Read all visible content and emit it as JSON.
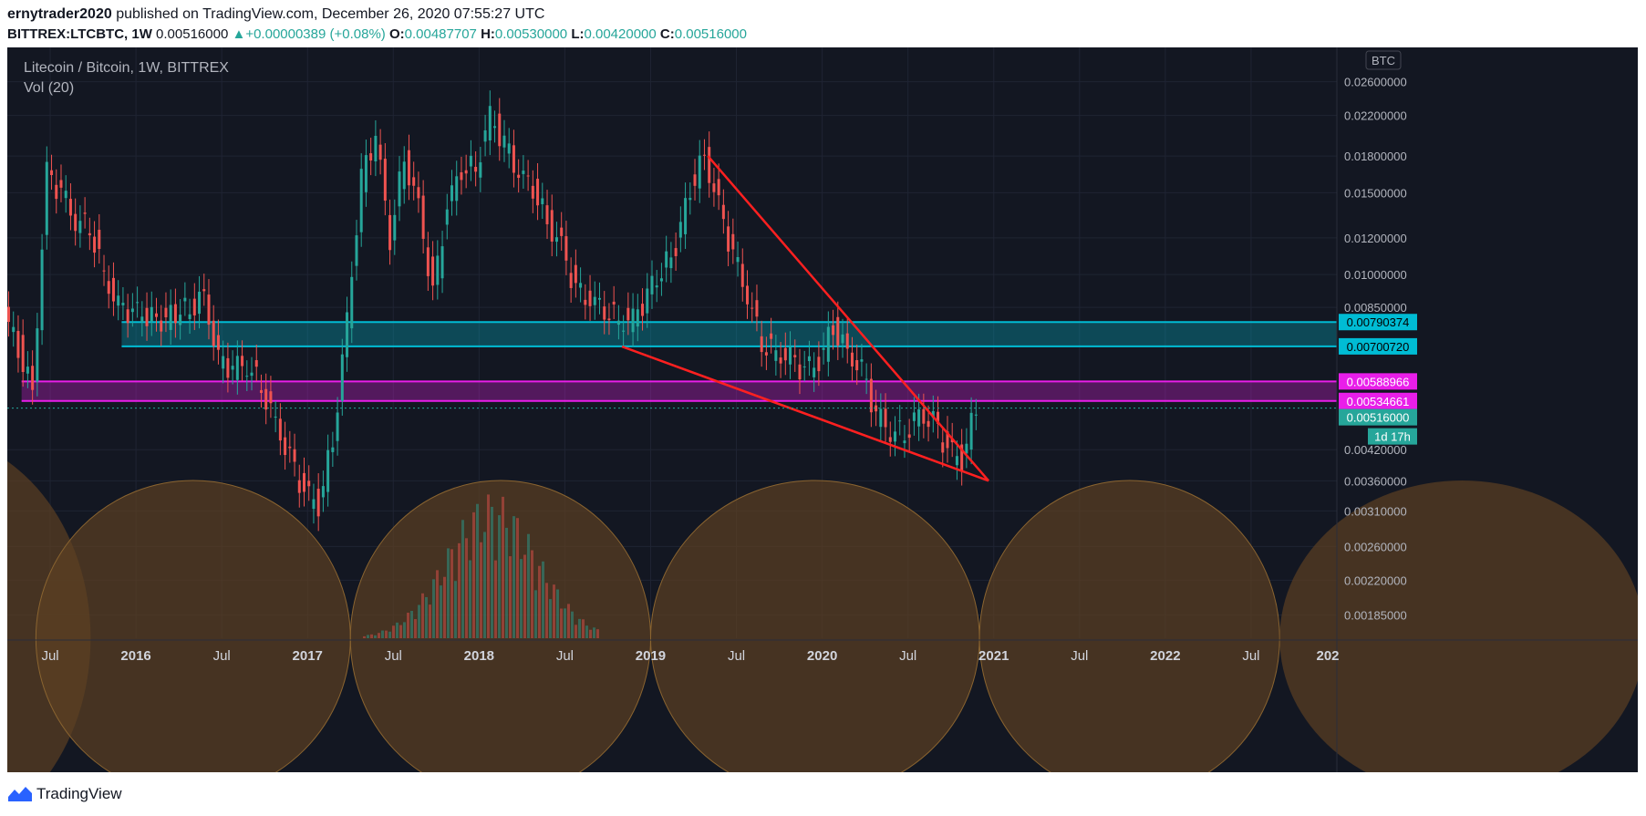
{
  "header": {
    "author": "ernytrader2020",
    "published_text": "published on TradingView.com, December 26, 2020 07:55:27 UTC",
    "symbol": "BITTREX:LTCBTC, 1W",
    "last": "0.00516000",
    "change": "+0.00000389 (+0.08%)",
    "open_label": "O:",
    "open": "0.00487707",
    "high_label": "H:",
    "high": "0.00530000",
    "low_label": "L:",
    "low": "0.00420000",
    "close_label": "C:",
    "close": "0.00516000"
  },
  "legend": {
    "title": "Litecoin / Bitcoin, 1W, BITTREX",
    "volume": "Vol (20)",
    "currency": "BTC"
  },
  "chart_data": {
    "type": "candlestick",
    "y_scale": "log",
    "ylim": [
      0.00165,
      0.03
    ],
    "y_ticks": [
      "0.02600000",
      "0.02200000",
      "0.01800000",
      "0.01500000",
      "0.01200000",
      "0.01000000",
      "0.00850000",
      "0.00420000",
      "0.00360000",
      "0.00310000",
      "0.00260000",
      "0.00220000",
      "0.00185000"
    ],
    "x_ticks": [
      "Jul",
      "2016",
      "Jul",
      "2017",
      "Jul",
      "2018",
      "Jul",
      "2019",
      "Jul",
      "2020",
      "Jul",
      "2021",
      "Jul",
      "2022",
      "Jul",
      "202"
    ],
    "series": [
      {
        "x": "2015-04",
        "y": 0.0082
      },
      {
        "x": "2015-05",
        "y": 0.007
      },
      {
        "x": "2015-06",
        "y": 0.0056
      },
      {
        "x": "2015-07",
        "y": 0.0165
      },
      {
        "x": "2015-08",
        "y": 0.015
      },
      {
        "x": "2015-09",
        "y": 0.013
      },
      {
        "x": "2015-10",
        "y": 0.0128
      },
      {
        "x": "2015-11",
        "y": 0.01
      },
      {
        "x": "2015-12",
        "y": 0.0085
      },
      {
        "x": "2016-01",
        "y": 0.0083
      },
      {
        "x": "2016-03",
        "y": 0.008
      },
      {
        "x": "2016-05",
        "y": 0.0085
      },
      {
        "x": "2016-06",
        "y": 0.009
      },
      {
        "x": "2016-07",
        "y": 0.0065
      },
      {
        "x": "2016-08",
        "y": 0.0063
      },
      {
        "x": "2016-09",
        "y": 0.0064
      },
      {
        "x": "2016-10",
        "y": 0.0058
      },
      {
        "x": "2016-11",
        "y": 0.0048
      },
      {
        "x": "2016-12",
        "y": 0.004
      },
      {
        "x": "2017-01",
        "y": 0.0034
      },
      {
        "x": "2017-02",
        "y": 0.0032
      },
      {
        "x": "2017-03",
        "y": 0.0044
      },
      {
        "x": "2017-04",
        "y": 0.008
      },
      {
        "x": "2017-05",
        "y": 0.016
      },
      {
        "x": "2017-06",
        "y": 0.02
      },
      {
        "x": "2017-07",
        "y": 0.012
      },
      {
        "x": "2017-08",
        "y": 0.018
      },
      {
        "x": "2017-09",
        "y": 0.014
      },
      {
        "x": "2017-10",
        "y": 0.009
      },
      {
        "x": "2017-11",
        "y": 0.014
      },
      {
        "x": "2017-12",
        "y": 0.017
      },
      {
        "x": "2018-01",
        "y": 0.017
      },
      {
        "x": "2018-02",
        "y": 0.022
      },
      {
        "x": "2018-03",
        "y": 0.019
      },
      {
        "x": "2018-04",
        "y": 0.0165
      },
      {
        "x": "2018-05",
        "y": 0.0155
      },
      {
        "x": "2018-06",
        "y": 0.013
      },
      {
        "x": "2018-07",
        "y": 0.0115
      },
      {
        "x": "2018-08",
        "y": 0.0092
      },
      {
        "x": "2018-09",
        "y": 0.0088
      },
      {
        "x": "2018-10",
        "y": 0.0085
      },
      {
        "x": "2018-11",
        "y": 0.008
      },
      {
        "x": "2018-12",
        "y": 0.008
      },
      {
        "x": "2019-01",
        "y": 0.009
      },
      {
        "x": "2019-03",
        "y": 0.0115
      },
      {
        "x": "2019-04",
        "y": 0.0155
      },
      {
        "x": "2019-05",
        "y": 0.018
      },
      {
        "x": "2019-06",
        "y": 0.014
      },
      {
        "x": "2019-07",
        "y": 0.011
      },
      {
        "x": "2019-08",
        "y": 0.009
      },
      {
        "x": "2019-09",
        "y": 0.0072
      },
      {
        "x": "2019-10",
        "y": 0.0068
      },
      {
        "x": "2019-11",
        "y": 0.0066
      },
      {
        "x": "2019-12",
        "y": 0.0062
      },
      {
        "x": "2020-01",
        "y": 0.0065
      },
      {
        "x": "2020-02",
        "y": 0.0078
      },
      {
        "x": "2020-03",
        "y": 0.0068
      },
      {
        "x": "2020-04",
        "y": 0.0062
      },
      {
        "x": "2020-05",
        "y": 0.005
      },
      {
        "x": "2020-06",
        "y": 0.0046
      },
      {
        "x": "2020-07",
        "y": 0.0046
      },
      {
        "x": "2020-08",
        "y": 0.005
      },
      {
        "x": "2020-09",
        "y": 0.0048
      },
      {
        "x": "2020-10",
        "y": 0.0042
      },
      {
        "x": "2020-11",
        "y": 0.004
      },
      {
        "x": "2020-12",
        "y": 0.0052
      }
    ],
    "horizontal_zones": [
      {
        "color": "#00bcd4",
        "top": 0.00790374,
        "bottom": 0.0070072,
        "labels": [
          "0.00790374",
          "0.00700720"
        ]
      },
      {
        "color": "#e91ee9",
        "top": 0.00588966,
        "bottom": 0.00534661,
        "labels": [
          "0.00588966",
          "0.00534661"
        ]
      }
    ],
    "current_price": {
      "label": "0.00516000",
      "countdown": "1d 17h",
      "color": "#26a69a"
    },
    "trendlines": [
      {
        "color": "#ff2020",
        "points": [
          [
            "2019-05",
            0.018
          ],
          [
            "2020-12",
            0.0036
          ]
        ]
      },
      {
        "color": "#ff2020",
        "points": [
          [
            "2018-11",
            0.007
          ],
          [
            "2020-12",
            0.0036
          ]
        ]
      }
    ],
    "cycle_arcs_color": "#5c4022"
  },
  "footer": {
    "brand": "TradingView"
  }
}
